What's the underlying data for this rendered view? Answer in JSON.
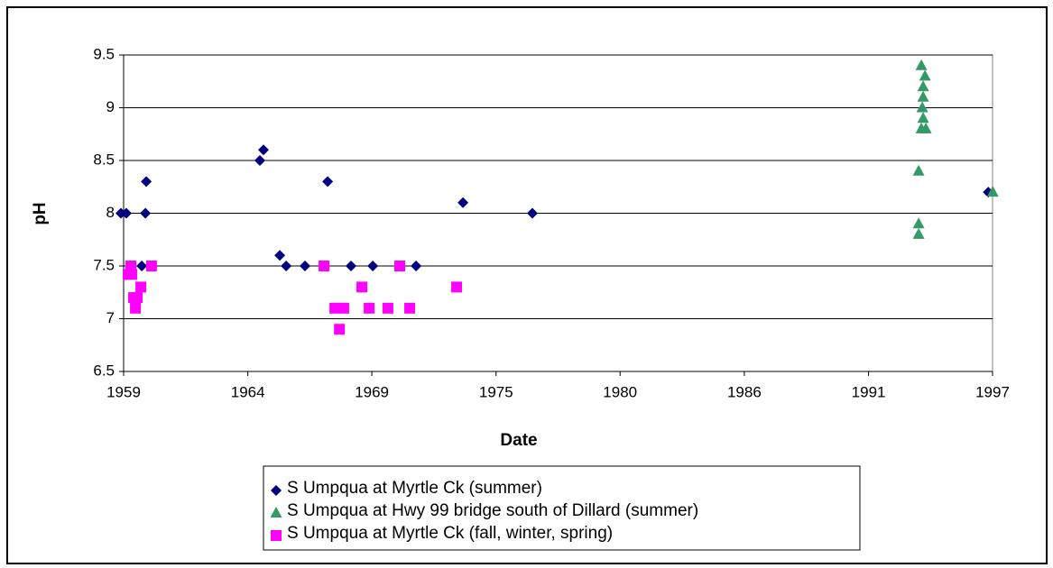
{
  "chart_data": {
    "type": "scatter",
    "xlabel": "Date",
    "ylabel": "pH",
    "xlim": [
      1959.0,
      1997.33
    ],
    "ylim": [
      6.5,
      9.5
    ],
    "xticks": [
      {
        "value": 1959.0,
        "label": "1959"
      },
      {
        "value": 1964.48,
        "label": "1964"
      },
      {
        "value": 1969.95,
        "label": "1969"
      },
      {
        "value": 1975.43,
        "label": "1975"
      },
      {
        "value": 1980.9,
        "label": "1980"
      },
      {
        "value": 1986.38,
        "label": "1986"
      },
      {
        "value": 1991.86,
        "label": "1991"
      },
      {
        "value": 1997.33,
        "label": "1997"
      }
    ],
    "yticks": [
      6.5,
      7,
      7.5,
      8,
      8.5,
      9,
      9.5
    ],
    "grid": true,
    "legend": "bottom",
    "series": [
      {
        "name": "S Umpqua at Myrtle Ck (summer)",
        "color": "#000080",
        "marker": "diamond",
        "x": [
          1958.88,
          1959.12,
          1960.0,
          1959.96,
          1959.8,
          1965.01,
          1965.17,
          1965.89,
          1966.17,
          1967.0,
          1968.0,
          1969.03,
          1969.99,
          1971.9,
          1973.97,
          1977.03,
          1997.14
        ],
        "values": [
          8.0,
          8.0,
          8.3,
          8.0,
          7.5,
          8.5,
          8.6,
          7.6,
          7.5,
          7.5,
          8.3,
          7.5,
          7.5,
          7.5,
          8.1,
          8.0,
          8.2
        ]
      },
      {
        "name": "S Umpqua at Hwy 99 bridge south of Dillard (summer)",
        "color": "#339966",
        "marker": "triangle",
        "x": [
          1994.19,
          1994.35,
          1994.27,
          1994.27,
          1994.23,
          1994.27,
          1994.19,
          1994.39,
          1994.07,
          1994.07,
          1994.07,
          1997.34
        ],
        "values": [
          9.4,
          9.3,
          9.2,
          9.1,
          9.0,
          8.9,
          8.8,
          8.8,
          8.4,
          7.9,
          7.8,
          8.2
        ]
      },
      {
        "name": "S Umpqua at Myrtle Ck (fall, winter, spring)",
        "color": "#ff00ff",
        "marker": "square",
        "x": [
          1959.2,
          1959.32,
          1959.36,
          1959.44,
          1959.52,
          1959.6,
          1959.76,
          1960.23,
          1967.84,
          1968.32,
          1968.52,
          1968.71,
          1969.51,
          1969.83,
          1970.66,
          1971.18,
          1971.62,
          1973.69
        ],
        "values": [
          7.42,
          7.5,
          7.42,
          7.2,
          7.1,
          7.2,
          7.3,
          7.5,
          7.5,
          7.1,
          6.9,
          7.1,
          7.3,
          7.1,
          7.1,
          7.5,
          7.1,
          7.3
        ]
      }
    ]
  }
}
